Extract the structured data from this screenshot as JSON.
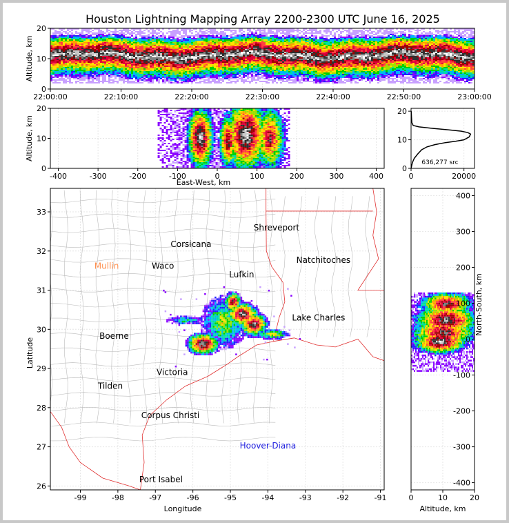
{
  "title": "Houston Lightning Mapping Array 2200-2300 UTC June 16, 2025",
  "source_count_label": "636,277 src",
  "colors": {
    "density_scale": [
      "#c8a0ff",
      "#8a00ff",
      "#2020ff",
      "#00b0ff",
      "#00e0a0",
      "#00d000",
      "#a0e000",
      "#ffe000",
      "#ffa000",
      "#ff4040",
      "#e0003c",
      "#a00000",
      "#303030",
      "#808080",
      "#c8c8c8",
      "#ffffff"
    ],
    "state_border": "#e03030",
    "county_border": "#bbbbbb"
  },
  "chart_data": [
    {
      "type": "heatmap",
      "panel": "time-altitude",
      "xlabel": "",
      "ylabel": "Altitude, km",
      "x_ticks": [
        "22:00:00",
        "22:10:00",
        "22:20:00",
        "22:30:00",
        "22:40:00",
        "22:50:00",
        "23:00:00"
      ],
      "xlim": [
        "22:00:00",
        "23:00:00"
      ],
      "ylim": [
        0,
        20
      ],
      "y_ticks": [
        0,
        10,
        20
      ],
      "altitude_profile_km": {
        "core_center": 11,
        "core_halfwidth": 3,
        "extent": [
          2,
          20
        ]
      }
    },
    {
      "type": "heatmap",
      "panel": "east-west-altitude",
      "xlabel": "East-West, km",
      "ylabel": "Altitude, km",
      "xlim": [
        -420,
        420
      ],
      "x_ticks": [
        -400,
        -300,
        -200,
        -100,
        0,
        100,
        200,
        300,
        400
      ],
      "ylim": [
        0,
        20
      ],
      "y_ticks": [
        0,
        10,
        20
      ],
      "cells": [
        {
          "x": -45,
          "alt": 10,
          "rx": 22,
          "ra": 7,
          "peak": 15
        },
        {
          "x": 25,
          "alt": 9,
          "rx": 15,
          "ra": 6,
          "peak": 13
        },
        {
          "x": 70,
          "alt": 11,
          "rx": 35,
          "ra": 8,
          "peak": 15
        },
        {
          "x": 130,
          "alt": 10,
          "rx": 25,
          "ra": 7,
          "peak": 12
        }
      ],
      "x_extent": [
        -150,
        180
      ]
    },
    {
      "type": "line",
      "panel": "altitude-histogram",
      "xlabel": "",
      "ylabel": "",
      "xlim": [
        0,
        24000
      ],
      "x_ticks": [
        0,
        20000
      ],
      "ylim": [
        0,
        21
      ],
      "y_ticks": [
        0,
        10,
        20
      ],
      "x": [
        0,
        500,
        1200,
        2500,
        4000,
        6000,
        9000,
        13000,
        17000,
        20000,
        22000,
        22500,
        21500,
        19000,
        14000,
        8000,
        3000,
        800,
        300,
        150,
        50
      ],
      "y": [
        0,
        2,
        3.5,
        5,
        6.5,
        7.5,
        8.3,
        9,
        9.5,
        10,
        11,
        12,
        12.5,
        13,
        13.5,
        14,
        14.5,
        15,
        16,
        18,
        20
      ]
    },
    {
      "type": "scatter",
      "panel": "plan-view-map",
      "xlabel": "Longitude",
      "ylabel": "Latitude",
      "xlim": [
        -99.8,
        -90.9
      ],
      "ylim": [
        25.9,
        33.6
      ],
      "x_ticks": [
        -99,
        -98,
        -97,
        -96,
        -95,
        -94,
        -93,
        -92,
        -91
      ],
      "y_ticks": [
        26,
        27,
        28,
        29,
        30,
        31,
        32,
        33
      ],
      "cells": [
        {
          "lon": -95.75,
          "lat": 29.65,
          "rx": 0.35,
          "ry": 0.22,
          "peak": 15
        },
        {
          "lon": -94.95,
          "lat": 30.72,
          "rx": 0.18,
          "ry": 0.2,
          "peak": 13
        },
        {
          "lon": -94.7,
          "lat": 30.4,
          "rx": 0.35,
          "ry": 0.25,
          "peak": 14
        },
        {
          "lon": -94.4,
          "lat": 30.15,
          "rx": 0.3,
          "ry": 0.25,
          "peak": 14
        },
        {
          "lon": -95.2,
          "lat": 30.2,
          "rx": 0.45,
          "ry": 0.5,
          "peak": 7
        },
        {
          "lon": -93.9,
          "lat": 29.9,
          "rx": 0.35,
          "ry": 0.1,
          "peak": 8
        },
        {
          "lon": -96.2,
          "lat": 30.25,
          "rx": 0.4,
          "ry": 0.08,
          "peak": 5
        }
      ],
      "places": [
        {
          "name": "Shreveport",
          "lon": -93.77,
          "lat": 32.6,
          "color": "#000000"
        },
        {
          "name": "Corsicana",
          "lon": -96.05,
          "lat": 32.17,
          "color": "#000000"
        },
        {
          "name": "Natchitoches",
          "lon": -92.52,
          "lat": 31.77,
          "color": "#000000"
        },
        {
          "name": "Mullin",
          "lon": -98.3,
          "lat": 31.62,
          "color": "#ff9050"
        },
        {
          "name": "Waco",
          "lon": -96.8,
          "lat": 31.62,
          "color": "#000000"
        },
        {
          "name": "Lufkin",
          "lon": -94.7,
          "lat": 31.4,
          "color": "#000000"
        },
        {
          "name": "Lake Charles",
          "lon": -92.65,
          "lat": 30.3,
          "color": "#000000"
        },
        {
          "name": "Boerne",
          "lon": -98.1,
          "lat": 29.83,
          "color": "#000000"
        },
        {
          "name": "Victoria",
          "lon": -96.55,
          "lat": 28.9,
          "color": "#000000"
        },
        {
          "name": "Tilden",
          "lon": -98.2,
          "lat": 28.55,
          "color": "#000000"
        },
        {
          "name": "Corpus Christi",
          "lon": -96.6,
          "lat": 27.8,
          "color": "#000000"
        },
        {
          "name": "Hoover-Diana",
          "lon": -94.0,
          "lat": 27.03,
          "color": "#2020e0"
        },
        {
          "name": "Port Isabel",
          "lon": -96.85,
          "lat": 26.16,
          "color": "#000000"
        }
      ]
    },
    {
      "type": "heatmap",
      "panel": "altitude-north-south",
      "xlabel": "Altitude, km",
      "ylabel": "North-South, km",
      "xlim": [
        0,
        20
      ],
      "x_ticks": [
        0,
        10,
        20
      ],
      "ylim": [
        -420,
        420
      ],
      "y_ticks": [
        -400,
        -300,
        -200,
        -100,
        0,
        100,
        200,
        300,
        400
      ],
      "cells": [
        {
          "ns": 100,
          "alt": 11,
          "rns": 20,
          "ralt": 5,
          "peak": 13
        },
        {
          "ns": 55,
          "alt": 11,
          "rns": 25,
          "ralt": 6,
          "peak": 14
        },
        {
          "ns": 20,
          "alt": 10,
          "rns": 25,
          "ralt": 6,
          "peak": 13
        },
        {
          "ns": -5,
          "alt": 9,
          "rns": 20,
          "ralt": 5,
          "peak": 15
        }
      ],
      "ns_extent": [
        -90,
        130
      ]
    }
  ]
}
